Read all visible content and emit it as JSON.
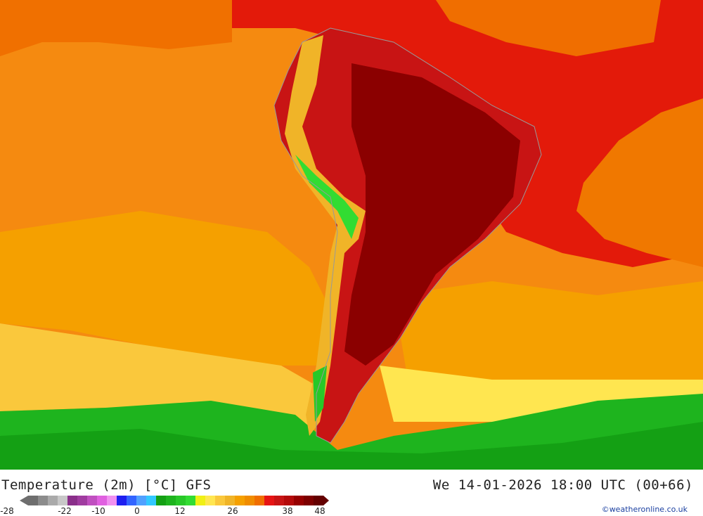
{
  "legend": {
    "title": "Temperature (2m) [°C] GFS",
    "datetime": "We 14-01-2026 18:00 UTC (00+66)",
    "credit": "©weatheronline.co.uk",
    "ticks": [
      "-28",
      "-22",
      "-10",
      "0",
      "12",
      "26",
      "38",
      "48"
    ],
    "colors": [
      "#6e6e6e",
      "#8c8c8c",
      "#aaaaaa",
      "#c8c8c8",
      "#8a2f8a",
      "#a03ca0",
      "#c050c0",
      "#e060e0",
      "#f090f0",
      "#1e1ef0",
      "#3264ff",
      "#50a0ff",
      "#32c8ff",
      "#14a014",
      "#1eb41e",
      "#28c828",
      "#32dc32",
      "#f0f014",
      "#ffe650",
      "#fac83c",
      "#f0b428",
      "#f5a000",
      "#f08c00",
      "#f06e00",
      "#e61414",
      "#c81414",
      "#b40a0a",
      "#960000",
      "#7d0000",
      "#640000"
    ]
  },
  "map": {
    "ocean_color": "#f57c00",
    "land_color": "#8b0000",
    "andes_color": "#32dc32",
    "south_band_color": "#1eb41e"
  }
}
